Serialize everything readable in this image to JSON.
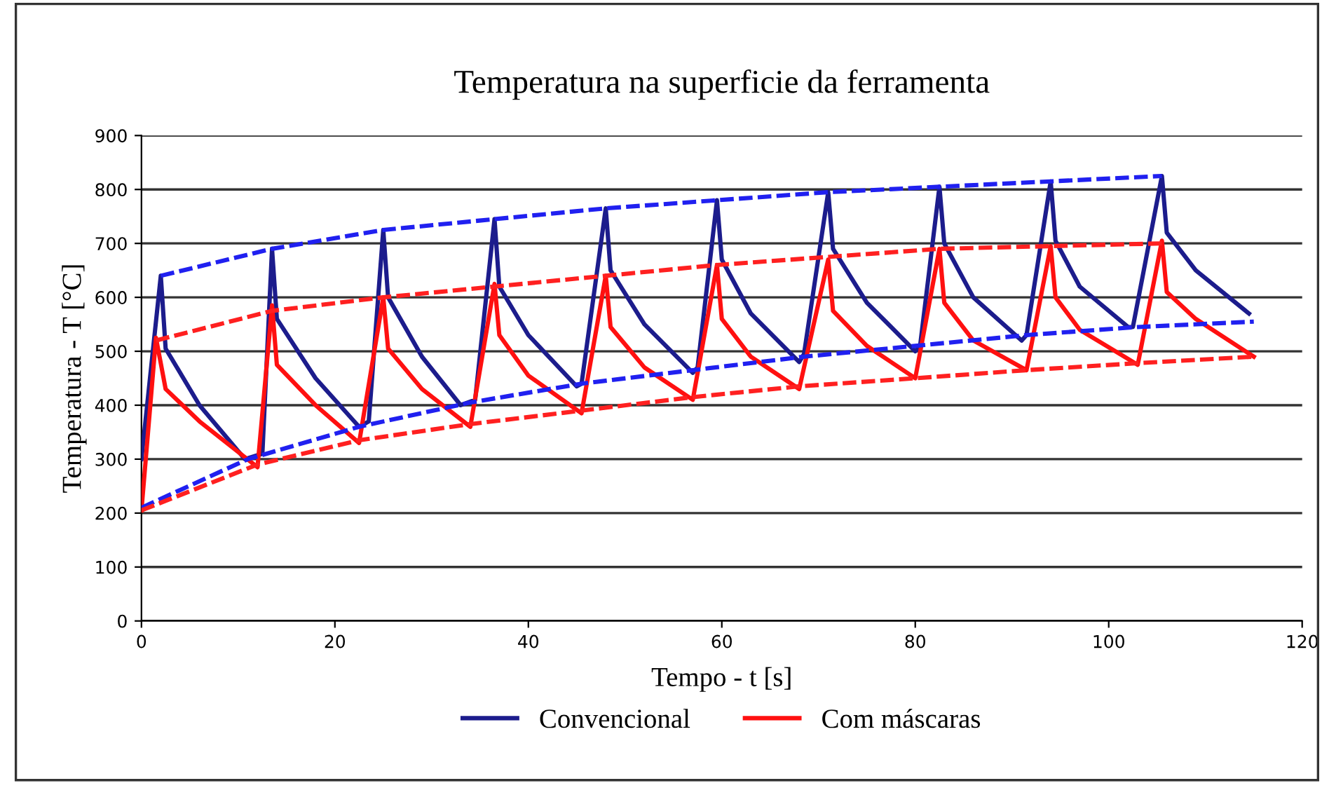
{
  "chart_data": {
    "type": "line",
    "title": "Temperatura na superficie da ferramenta",
    "xlabel": "Tempo - t [s]",
    "ylabel": "Temperatura - T [°C]",
    "xlim": [
      0,
      120
    ],
    "xticks": [
      0,
      20,
      40,
      60,
      80,
      100,
      120
    ],
    "ylim": [
      0,
      900
    ],
    "yticks": [
      0,
      100,
      200,
      300,
      400,
      500,
      600,
      700,
      800,
      900
    ],
    "grid": "y",
    "legend": "bottom",
    "line_style": "solid",
    "series": [
      {
        "name": "Convencional",
        "color": "#1c1c8c",
        "x": [
          0,
          2,
          2.5,
          6,
          10.7,
          12.5,
          13.5,
          14,
          18,
          22.5,
          23.5,
          25,
          25.5,
          29,
          33,
          34.5,
          36.5,
          37,
          40,
          45,
          45.5,
          48,
          48.5,
          52,
          57,
          57.5,
          59.5,
          60,
          63,
          68,
          68.5,
          71,
          71.5,
          75,
          80,
          80.5,
          82.5,
          83,
          86,
          91,
          91.5,
          94,
          94.5,
          97,
          102,
          102.5,
          105.5,
          106,
          109,
          114.5
        ],
        "values": [
          300,
          640,
          505,
          400,
          300,
          310,
          690,
          560,
          450,
          360,
          370,
          725,
          600,
          490,
          400,
          410,
          745,
          620,
          530,
          435,
          440,
          765,
          650,
          550,
          460,
          470,
          780,
          670,
          570,
          480,
          495,
          795,
          690,
          590,
          500,
          510,
          805,
          700,
          600,
          520,
          530,
          815,
          705,
          620,
          545,
          545,
          825,
          720,
          650,
          570
        ]
      },
      {
        "name": "Com máscaras",
        "color": "#ff1010",
        "x": [
          0,
          1.5,
          2.5,
          6,
          12,
          13.5,
          14,
          18,
          22.5,
          25,
          25.5,
          29,
          34,
          36.5,
          37,
          40,
          45.5,
          48,
          48.5,
          52,
          57,
          59.5,
          60,
          63,
          68,
          71,
          71.5,
          75,
          80,
          82.5,
          83,
          86,
          91.5,
          94,
          94.5,
          97,
          103,
          105.5,
          106,
          109,
          115
        ],
        "values": [
          205,
          525,
          430,
          370,
          285,
          585,
          475,
          400,
          330,
          600,
          505,
          430,
          360,
          625,
          530,
          455,
          385,
          640,
          545,
          470,
          410,
          660,
          560,
          490,
          430,
          670,
          575,
          510,
          450,
          690,
          590,
          520,
          465,
          695,
          600,
          540,
          475,
          705,
          610,
          560,
          490
        ]
      },
      {
        "type": "line",
        "color": "#2020f0",
        "line_style": "dashed",
        "x": [
          2,
          13.5,
          25,
          36.5,
          48,
          59.5,
          71,
          82.5,
          94,
          105.5
        ],
        "values": [
          640,
          690,
          725,
          745,
          765,
          780,
          795,
          805,
          815,
          825
        ]
      },
      {
        "type": "line",
        "color": "#2020f0",
        "line_style": "dashed",
        "x": [
          0,
          11,
          22.5,
          34,
          45.5,
          57,
          68.5,
          80,
          91.5,
          103,
          115
        ],
        "values": [
          210,
          300,
          360,
          405,
          440,
          465,
          490,
          510,
          530,
          545,
          555
        ]
      },
      {
        "type": "line",
        "color": "#ff2020",
        "line_style": "dashed",
        "x": [
          1.5,
          13.5,
          25,
          36.5,
          48,
          59.5,
          71,
          82.5,
          94,
          105.5
        ],
        "values": [
          520,
          575,
          600,
          620,
          640,
          660,
          675,
          690,
          695,
          700
        ]
      },
      {
        "type": "line",
        "color": "#ff2020",
        "line_style": "dashed",
        "x": [
          0,
          12,
          22.5,
          34,
          45.5,
          57,
          68,
          80,
          91.5,
          103,
          115
        ],
        "values": [
          205,
          290,
          335,
          365,
          390,
          415,
          435,
          450,
          465,
          478,
          490
        ]
      }
    ]
  }
}
